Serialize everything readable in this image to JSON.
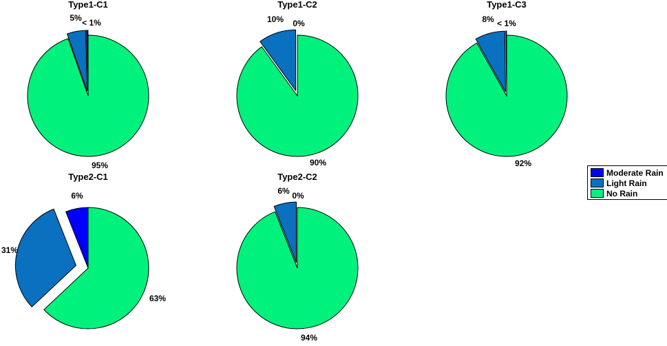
{
  "legend": {
    "items": [
      {
        "label": "Moderate Rain",
        "color": "#0000ff"
      },
      {
        "label": "Light Rain",
        "color": "#0a70c0"
      },
      {
        "label": "No Rain",
        "color": "#00f27c"
      }
    ]
  },
  "chart_data": [
    {
      "type": "pie",
      "title": "Type1-C1",
      "slices": [
        {
          "name": "Moderate Rain",
          "value": 0.4,
          "label": "< 1%"
        },
        {
          "name": "Light Rain",
          "value": 5,
          "label": "5%"
        },
        {
          "name": "No Rain",
          "value": 95,
          "label": "95%"
        }
      ]
    },
    {
      "type": "pie",
      "title": "Type1-C2",
      "slices": [
        {
          "name": "Moderate Rain",
          "value": 0,
          "label": "0%"
        },
        {
          "name": "Light Rain",
          "value": 10,
          "label": "10%"
        },
        {
          "name": "No Rain",
          "value": 90,
          "label": "90%"
        }
      ]
    },
    {
      "type": "pie",
      "title": "Type1-C3",
      "slices": [
        {
          "name": "Moderate Rain",
          "value": 0.2,
          "label": "< 1%"
        },
        {
          "name": "Light Rain",
          "value": 8,
          "label": "8%"
        },
        {
          "name": "No Rain",
          "value": 92,
          "label": "92%"
        }
      ]
    },
    {
      "type": "pie",
      "title": "Type2-C1",
      "slices": [
        {
          "name": "Moderate Rain",
          "value": 6,
          "label": "6%"
        },
        {
          "name": "Light Rain",
          "value": 31,
          "label": "31%"
        },
        {
          "name": "No Rain",
          "value": 63,
          "label": "63%"
        }
      ]
    },
    {
      "type": "pie",
      "title": "Type2-C2",
      "slices": [
        {
          "name": "Moderate Rain",
          "value": 0,
          "label": "0%"
        },
        {
          "name": "Light Rain",
          "value": 6,
          "label": "6%"
        },
        {
          "name": "No Rain",
          "value": 94,
          "label": "94%"
        }
      ]
    }
  ]
}
